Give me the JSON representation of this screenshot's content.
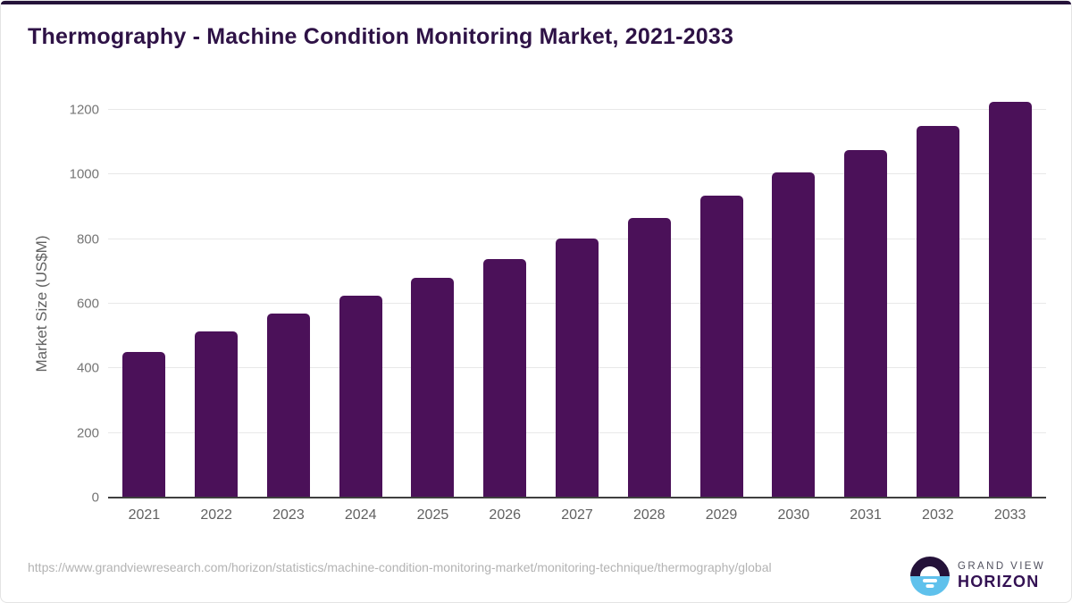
{
  "title": "Thermography - Machine Condition Monitoring Market, 2021-2033",
  "chart_data": {
    "type": "bar",
    "title": "Thermography - Machine Condition Monitoring Market, 2021-2033",
    "categories": [
      "2021",
      "2022",
      "2023",
      "2024",
      "2025",
      "2026",
      "2027",
      "2028",
      "2029",
      "2030",
      "2031",
      "2032",
      "2033"
    ],
    "values": [
      450,
      513,
      570,
      625,
      680,
      738,
      803,
      866,
      934,
      1007,
      1076,
      1150,
      1226
    ],
    "xlabel": "",
    "ylabel": "Market Size (US$M)",
    "ylim": [
      0,
      1200
    ],
    "yticks": [
      0,
      200,
      400,
      600,
      800,
      1000,
      1200
    ],
    "grid": true,
    "legend": "none",
    "bar_color": "#4b1159"
  },
  "footer": {
    "source_url": "https://www.grandviewresearch.com/horizon/statistics/machine-condition-monitoring-market/monitoring-technique/thermography/global",
    "logo": {
      "line1": "GRAND VIEW",
      "line2": "HORIZON"
    }
  },
  "colors": {
    "bar": "#4b1159",
    "title_text": "#2e1246",
    "top_strip": "#241239",
    "axis_line": "#3f3f3f",
    "gridline": "#e8e8e8",
    "y_tick_label": "#757575",
    "x_tick_label": "#616161",
    "url_text": "#b3b3b3",
    "logo_blue": "#5fc1ec",
    "logo_dark": "#241239"
  }
}
